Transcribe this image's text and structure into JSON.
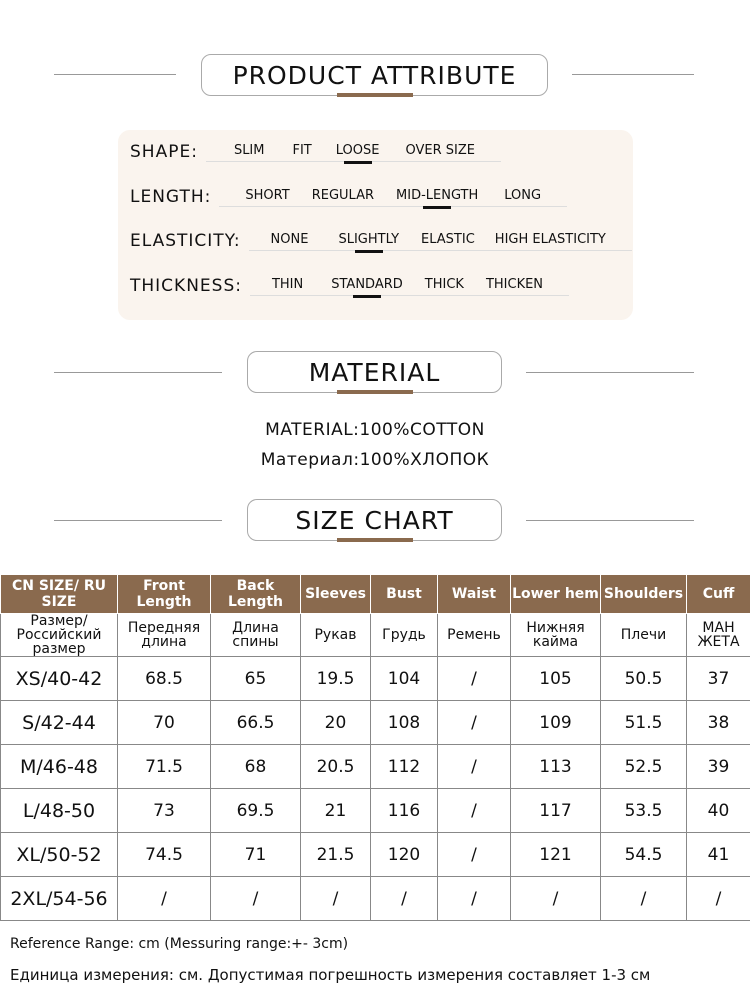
{
  "sections": {
    "attribute": "PRODUCT ATTRIBUTE",
    "material": "MATERIAL",
    "size_chart": "SIZE CHART"
  },
  "attributes": [
    {
      "label": "SHAPE:",
      "options": [
        "SLIM",
        "FIT",
        "LOOSE",
        "OVER SIZE"
      ],
      "selected": "LOOSE"
    },
    {
      "label": "LENGTH:",
      "options": [
        "SHORT",
        "REGULAR",
        "MID-LENGTH",
        "LONG"
      ],
      "selected": "MID-LENGTH"
    },
    {
      "label": "ELASTICITY:",
      "options": [
        "NONE",
        "SLIGHTLY",
        "ELASTIC",
        "HIGH ELASTICITY"
      ],
      "selected": "SLIGHTLY"
    },
    {
      "label": "THICKNESS:",
      "options": [
        "THIN",
        "STANDARD",
        "THICK",
        "THICKEN"
      ],
      "selected": "STANDARD"
    }
  ],
  "material": {
    "en": "MATERIAL:100%COTTON",
    "ru": "Материал:100%ХЛОПОК"
  },
  "table": {
    "header_en": [
      "CN SIZE/ RU SIZE",
      "Front Length",
      "Back Length",
      "Sleeves",
      "Bust",
      "Waist",
      "Lower hem",
      "Shoulders",
      "Cuff"
    ],
    "header_ru": [
      "Размер/ Российский размер",
      "Передняя длина",
      "Длина спины",
      "Рукав",
      "Грудь",
      "Ремень",
      "Нижняя кайма",
      "Плечи",
      "МАН ЖЕТА"
    ],
    "rows": [
      [
        "XS/40-42",
        "68.5",
        "65",
        "19.5",
        "104",
        "/",
        "105",
        "50.5",
        "37"
      ],
      [
        "S/42-44",
        "70",
        "66.5",
        "20",
        "108",
        "/",
        "109",
        "51.5",
        "38"
      ],
      [
        "M/46-48",
        "71.5",
        "68",
        "20.5",
        "112",
        "/",
        "113",
        "52.5",
        "39"
      ],
      [
        "L/48-50",
        "73",
        "69.5",
        "21",
        "116",
        "/",
        "117",
        "53.5",
        "40"
      ],
      [
        "XL/50-52",
        "74.5",
        "71",
        "21.5",
        "120",
        "/",
        "121",
        "54.5",
        "41"
      ],
      [
        "2XL/54-56",
        "/",
        "/",
        "/",
        "/",
        "/",
        "/",
        "/",
        "/"
      ]
    ]
  },
  "footer": {
    "en": "Reference Range: cm (Messuring range:+- 3cm)",
    "ru": "Единица измерения: см. Допустимая погрешность измерения составляет 1-3 см"
  },
  "colors": {
    "accent": "#8a6a4e",
    "panel": "#faf4ee"
  }
}
